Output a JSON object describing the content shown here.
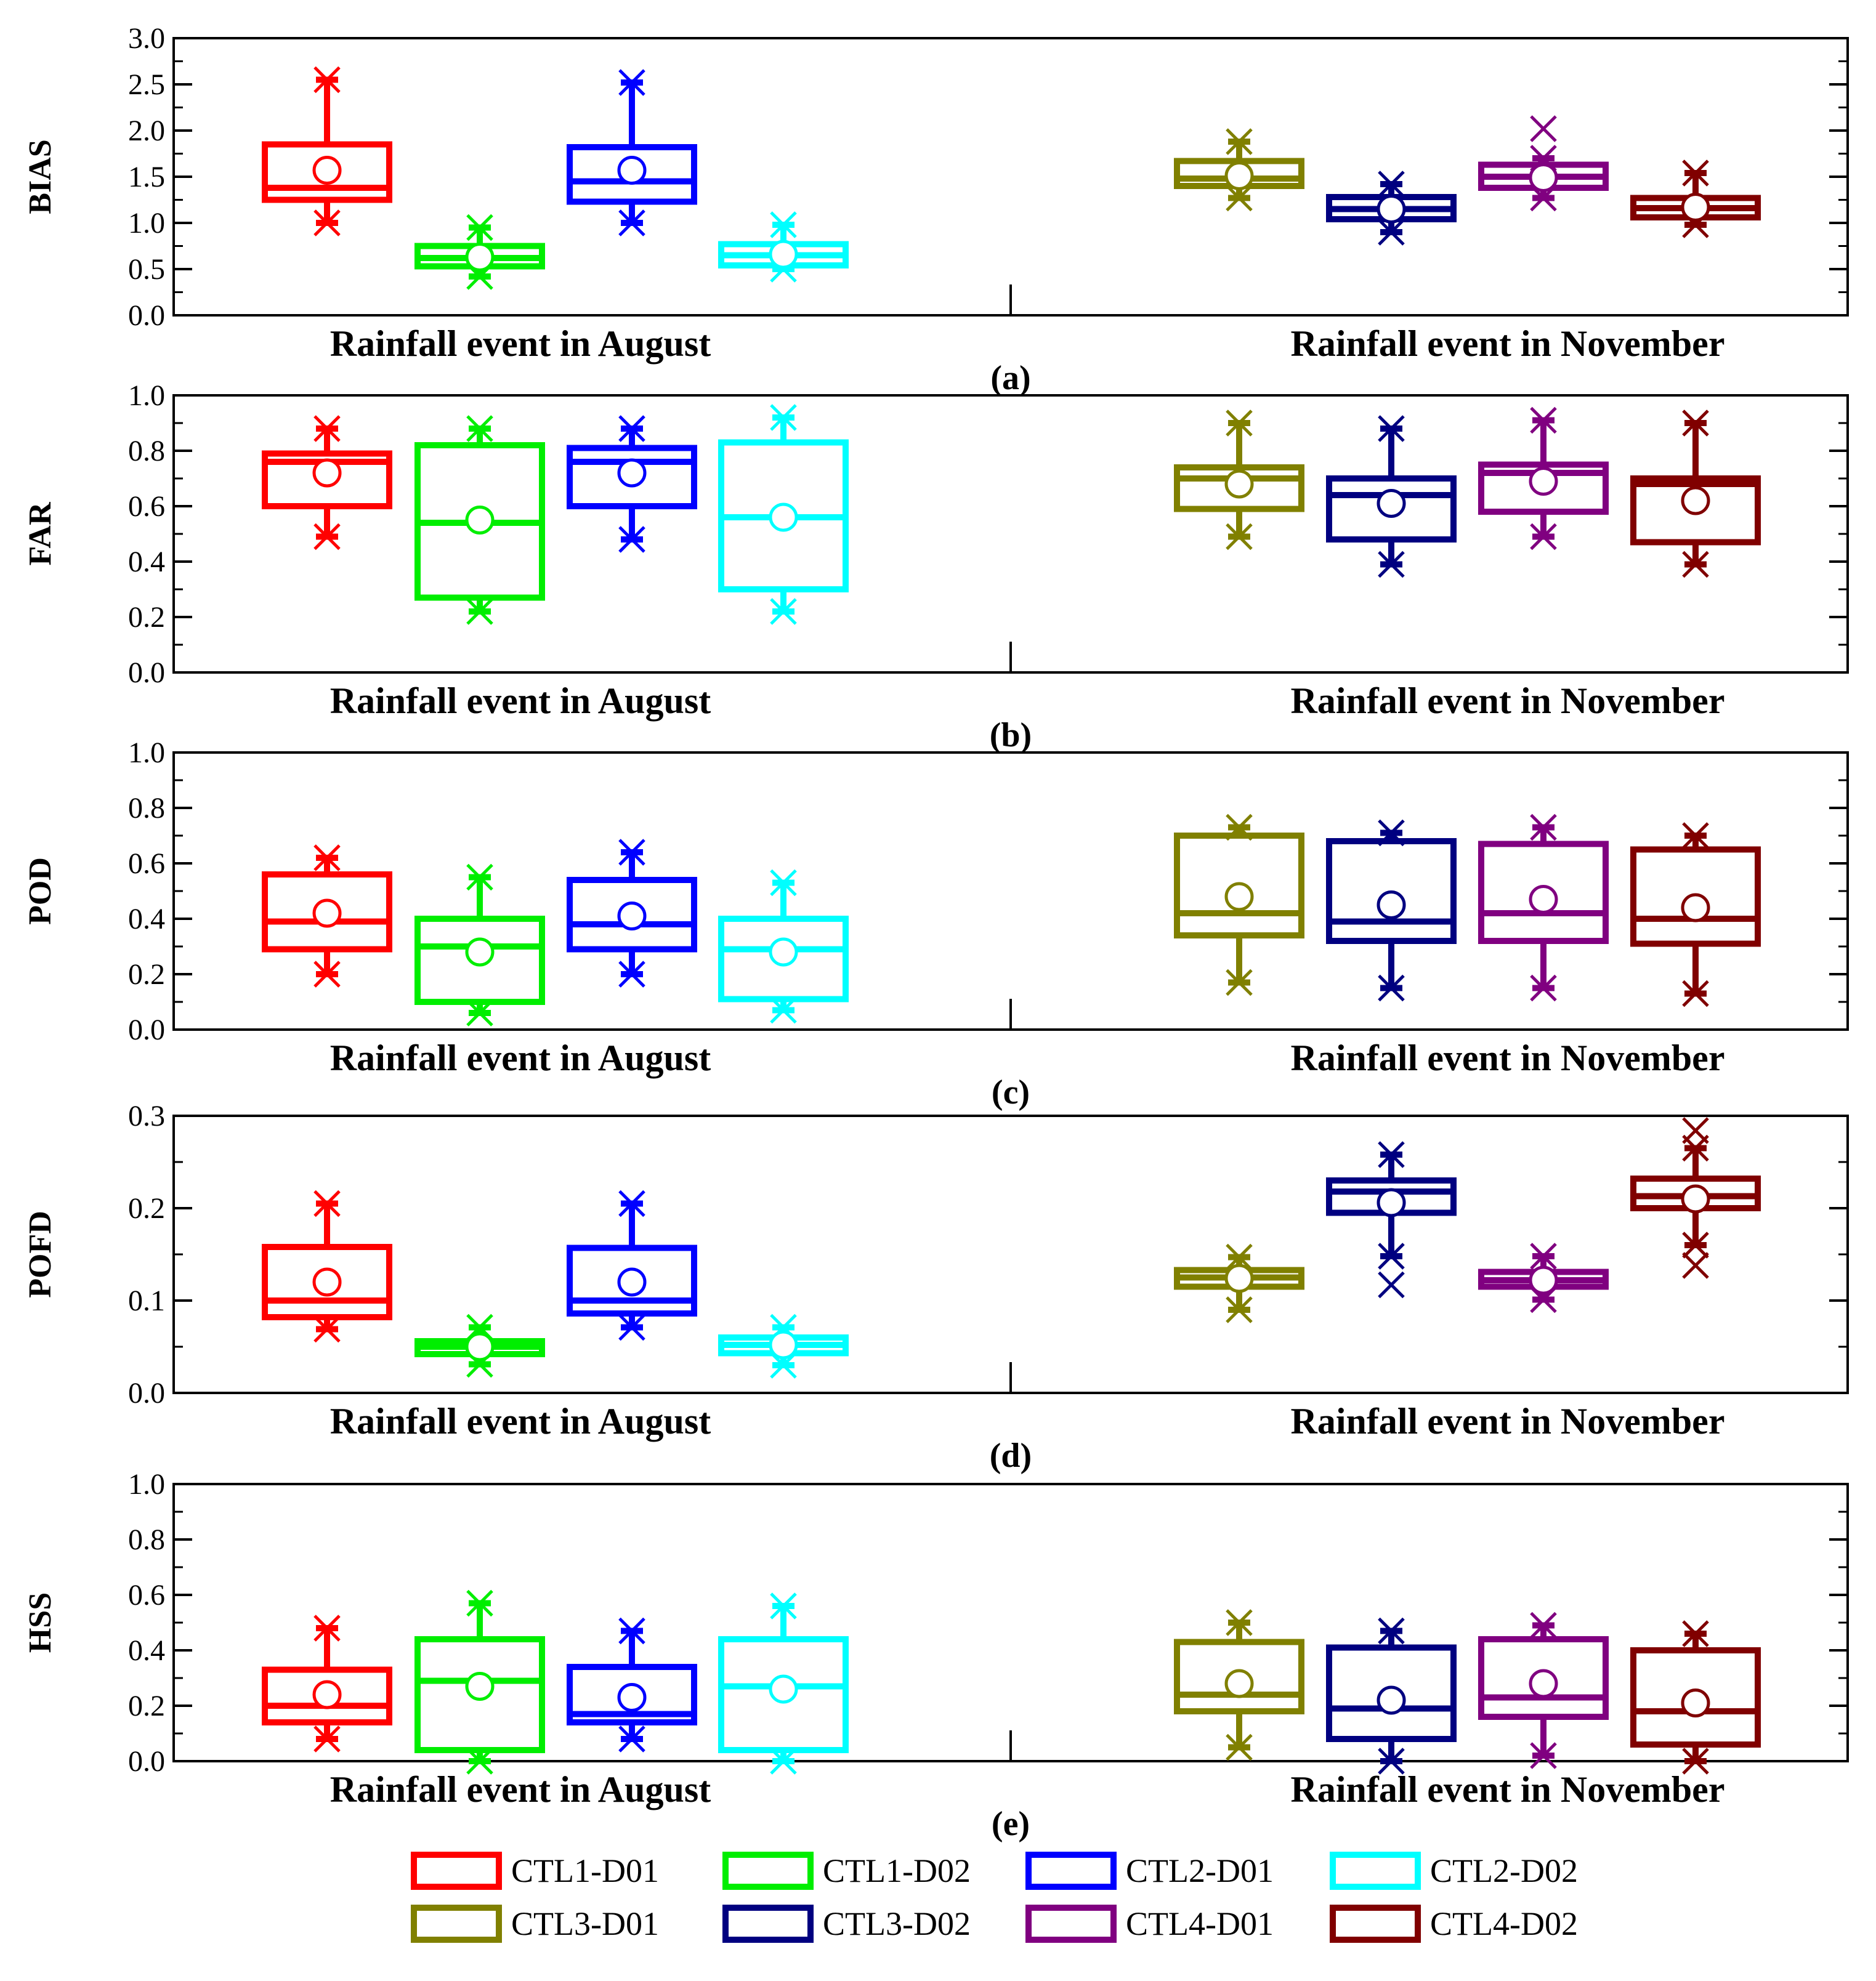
{
  "colors": {
    "CTL1-D01": "#ff0000",
    "CTL1-D02": "#00ee00",
    "CTL2-D01": "#0000ff",
    "CTL2-D02": "#00ffff",
    "CTL3-D01": "#808000",
    "CTL3-D02": "#000080",
    "CTL4-D01": "#800080",
    "CTL4-D02": "#800000",
    "axis": "#000000"
  },
  "chart_data": {
    "type": "box",
    "groups": [
      {
        "label": "Rainfall event in August",
        "series": [
          "CTL1-D01",
          "CTL1-D02",
          "CTL2-D01",
          "CTL2-D02"
        ]
      },
      {
        "label": "Rainfall event in November",
        "series": [
          "CTL3-D01",
          "CTL3-D02",
          "CTL4-D01",
          "CTL4-D02"
        ]
      }
    ],
    "legend": {
      "placement": "bottom",
      "entries": [
        "CTL1-D01",
        "CTL1-D02",
        "CTL2-D01",
        "CTL2-D02",
        "CTL3-D01",
        "CTL3-D02",
        "CTL4-D01",
        "CTL4-D02"
      ]
    },
    "panels": [
      {
        "id": "a",
        "panel_label": "(a)",
        "ylabel": "BIAS",
        "ylim": [
          0,
          3.0
        ],
        "yticks": [
          "0.0",
          "0.5",
          "1.0",
          "1.5",
          "2.0",
          "2.5",
          "3.0"
        ],
        "boxes": [
          {
            "series": "CTL1-D01",
            "min": 1.0,
            "q1": 1.25,
            "median": 1.38,
            "q3": 1.85,
            "max": 2.55,
            "mean": 1.57,
            "outliers": []
          },
          {
            "series": "CTL1-D02",
            "min": 0.42,
            "q1": 0.53,
            "median": 0.62,
            "q3": 0.75,
            "max": 0.95,
            "mean": 0.63,
            "outliers": []
          },
          {
            "series": "CTL2-D01",
            "min": 1.0,
            "q1": 1.23,
            "median": 1.45,
            "q3": 1.82,
            "max": 2.52,
            "mean": 1.57,
            "outliers": []
          },
          {
            "series": "CTL2-D02",
            "min": 0.5,
            "q1": 0.54,
            "median": 0.65,
            "q3": 0.77,
            "max": 0.98,
            "mean": 0.66,
            "outliers": []
          },
          {
            "series": "CTL3-D01",
            "min": 1.27,
            "q1": 1.4,
            "median": 1.48,
            "q3": 1.67,
            "max": 1.88,
            "mean": 1.51,
            "outliers": []
          },
          {
            "series": "CTL3-D02",
            "min": 0.9,
            "q1": 1.04,
            "median": 1.15,
            "q3": 1.28,
            "max": 1.42,
            "mean": 1.15,
            "outliers": []
          },
          {
            "series": "CTL4-D01",
            "min": 1.27,
            "q1": 1.38,
            "median": 1.5,
            "q3": 1.63,
            "max": 1.7,
            "mean": 1.49,
            "outliers": [
              2.02
            ]
          },
          {
            "series": "CTL4-D02",
            "min": 0.98,
            "q1": 1.06,
            "median": 1.16,
            "q3": 1.27,
            "max": 1.54,
            "mean": 1.17,
            "outliers": []
          }
        ]
      },
      {
        "id": "b",
        "panel_label": "(b)",
        "ylabel": "FAR",
        "ylim": [
          0,
          1.0
        ],
        "yticks": [
          "0.0",
          "0.2",
          "0.4",
          "0.6",
          "0.8",
          "1.0"
        ],
        "boxes": [
          {
            "series": "CTL1-D01",
            "min": 0.49,
            "q1": 0.6,
            "median": 0.76,
            "q3": 0.79,
            "max": 0.88,
            "mean": 0.72,
            "outliers": []
          },
          {
            "series": "CTL1-D02",
            "min": 0.22,
            "q1": 0.27,
            "median": 0.54,
            "q3": 0.82,
            "max": 0.88,
            "mean": 0.55,
            "outliers": []
          },
          {
            "series": "CTL2-D01",
            "min": 0.48,
            "q1": 0.6,
            "median": 0.76,
            "q3": 0.81,
            "max": 0.88,
            "mean": 0.72,
            "outliers": []
          },
          {
            "series": "CTL2-D02",
            "min": 0.22,
            "q1": 0.3,
            "median": 0.56,
            "q3": 0.83,
            "max": 0.92,
            "mean": 0.56,
            "outliers": []
          },
          {
            "series": "CTL3-D01",
            "min": 0.49,
            "q1": 0.59,
            "median": 0.7,
            "q3": 0.74,
            "max": 0.9,
            "mean": 0.68,
            "outliers": []
          },
          {
            "series": "CTL3-D02",
            "min": 0.39,
            "q1": 0.48,
            "median": 0.64,
            "q3": 0.7,
            "max": 0.88,
            "mean": 0.61,
            "outliers": []
          },
          {
            "series": "CTL4-D01",
            "min": 0.49,
            "q1": 0.58,
            "median": 0.72,
            "q3": 0.75,
            "max": 0.91,
            "mean": 0.69,
            "outliers": []
          },
          {
            "series": "CTL4-D02",
            "min": 0.39,
            "q1": 0.47,
            "median": 0.68,
            "q3": 0.7,
            "max": 0.9,
            "mean": 0.62,
            "outliers": []
          }
        ]
      },
      {
        "id": "c",
        "panel_label": "(c)",
        "ylabel": "POD",
        "ylim": [
          0,
          1.0
        ],
        "yticks": [
          "0.0",
          "0.2",
          "0.4",
          "0.6",
          "0.8",
          "1.0"
        ],
        "boxes": [
          {
            "series": "CTL1-D01",
            "min": 0.2,
            "q1": 0.29,
            "median": 0.39,
            "q3": 0.56,
            "max": 0.62,
            "mean": 0.42,
            "outliers": []
          },
          {
            "series": "CTL1-D02",
            "min": 0.06,
            "q1": 0.1,
            "median": 0.3,
            "q3": 0.4,
            "max": 0.55,
            "mean": 0.28,
            "outliers": []
          },
          {
            "series": "CTL2-D01",
            "min": 0.2,
            "q1": 0.29,
            "median": 0.38,
            "q3": 0.54,
            "max": 0.64,
            "mean": 0.41,
            "outliers": []
          },
          {
            "series": "CTL2-D02",
            "min": 0.07,
            "q1": 0.11,
            "median": 0.29,
            "q3": 0.4,
            "max": 0.53,
            "mean": 0.28,
            "outliers": []
          },
          {
            "series": "CTL3-D01",
            "min": 0.17,
            "q1": 0.34,
            "median": 0.42,
            "q3": 0.7,
            "max": 0.73,
            "mean": 0.48,
            "outliers": []
          },
          {
            "series": "CTL3-D02",
            "min": 0.15,
            "q1": 0.32,
            "median": 0.39,
            "q3": 0.68,
            "max": 0.71,
            "mean": 0.45,
            "outliers": []
          },
          {
            "series": "CTL4-D01",
            "min": 0.15,
            "q1": 0.32,
            "median": 0.42,
            "q3": 0.67,
            "max": 0.73,
            "mean": 0.47,
            "outliers": []
          },
          {
            "series": "CTL4-D02",
            "min": 0.13,
            "q1": 0.31,
            "median": 0.4,
            "q3": 0.65,
            "max": 0.7,
            "mean": 0.44,
            "outliers": []
          }
        ]
      },
      {
        "id": "d",
        "panel_label": "(d)",
        "ylabel": "POFD",
        "ylim": [
          0,
          0.3
        ],
        "yticks": [
          "0.0",
          "0.1",
          "0.2",
          "0.3"
        ],
        "boxes": [
          {
            "series": "CTL1-D01",
            "min": 0.069,
            "q1": 0.082,
            "median": 0.1,
            "q3": 0.158,
            "max": 0.205,
            "mean": 0.12,
            "outliers": []
          },
          {
            "series": "CTL1-D02",
            "min": 0.031,
            "q1": 0.042,
            "median": 0.05,
            "q3": 0.056,
            "max": 0.071,
            "mean": 0.05,
            "outliers": []
          },
          {
            "series": "CTL2-D01",
            "min": 0.071,
            "q1": 0.086,
            "median": 0.1,
            "q3": 0.157,
            "max": 0.205,
            "mean": 0.12,
            "outliers": []
          },
          {
            "series": "CTL2-D02",
            "min": 0.03,
            "q1": 0.043,
            "median": 0.052,
            "q3": 0.06,
            "max": 0.071,
            "mean": 0.052,
            "outliers": []
          },
          {
            "series": "CTL3-D01",
            "min": 0.09,
            "q1": 0.115,
            "median": 0.125,
            "q3": 0.133,
            "max": 0.147,
            "mean": 0.124,
            "outliers": []
          },
          {
            "series": "CTL3-D02",
            "min": 0.148,
            "q1": 0.195,
            "median": 0.218,
            "q3": 0.23,
            "max": 0.258,
            "mean": 0.206,
            "outliers": [
              0.117
            ]
          },
          {
            "series": "CTL4-D01",
            "min": 0.101,
            "q1": 0.115,
            "median": 0.122,
            "q3": 0.131,
            "max": 0.148,
            "mean": 0.122,
            "outliers": []
          },
          {
            "series": "CTL4-D02",
            "min": 0.16,
            "q1": 0.2,
            "median": 0.213,
            "q3": 0.232,
            "max": 0.265,
            "mean": 0.21,
            "outliers": [
              0.138,
              0.284
            ]
          }
        ]
      },
      {
        "id": "e",
        "panel_label": "(e)",
        "ylabel": "HSS",
        "ylim": [
          0,
          1.0
        ],
        "yticks": [
          "0.0",
          "0.2",
          "0.4",
          "0.6",
          "0.8",
          "1.0"
        ],
        "boxes": [
          {
            "series": "CTL1-D01",
            "min": 0.08,
            "q1": 0.14,
            "median": 0.2,
            "q3": 0.33,
            "max": 0.48,
            "mean": 0.24,
            "outliers": []
          },
          {
            "series": "CTL1-D02",
            "min": 0.0,
            "q1": 0.04,
            "median": 0.29,
            "q3": 0.44,
            "max": 0.57,
            "mean": 0.27,
            "outliers": []
          },
          {
            "series": "CTL2-D01",
            "min": 0.08,
            "q1": 0.14,
            "median": 0.17,
            "q3": 0.34,
            "max": 0.47,
            "mean": 0.23,
            "outliers": []
          },
          {
            "series": "CTL2-D02",
            "min": 0.0,
            "q1": 0.04,
            "median": 0.27,
            "q3": 0.44,
            "max": 0.56,
            "mean": 0.26,
            "outliers": []
          },
          {
            "series": "CTL3-D01",
            "min": 0.05,
            "q1": 0.18,
            "median": 0.24,
            "q3": 0.43,
            "max": 0.5,
            "mean": 0.28,
            "outliers": []
          },
          {
            "series": "CTL3-D02",
            "min": 0.0,
            "q1": 0.08,
            "median": 0.19,
            "q3": 0.41,
            "max": 0.47,
            "mean": 0.22,
            "outliers": []
          },
          {
            "series": "CTL4-D01",
            "min": 0.02,
            "q1": 0.16,
            "median": 0.23,
            "q3": 0.44,
            "max": 0.49,
            "mean": 0.28,
            "outliers": []
          },
          {
            "series": "CTL4-D02",
            "min": 0.0,
            "q1": 0.06,
            "median": 0.18,
            "q3": 0.4,
            "max": 0.46,
            "mean": 0.21,
            "outliers": []
          }
        ]
      }
    ]
  }
}
